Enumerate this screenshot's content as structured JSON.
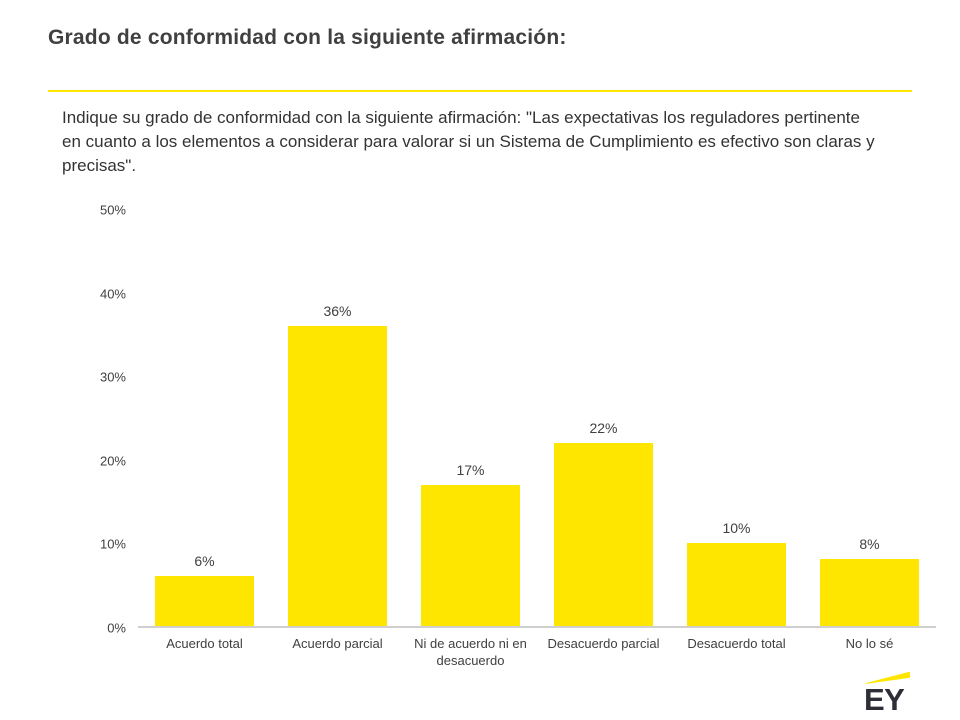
{
  "page": {
    "title": "Grado de conformidad con la siguiente afirmación:",
    "question": "Indique su grado de conformidad con la siguiente afirmación: \"Las expectativas los reguladores pertinente en cuanto a los elementos a considerar para valorar si un Sistema de Cumplimiento es efectivo son claras y precisas\"."
  },
  "chart_data": {
    "type": "bar",
    "title": "Grado de conformidad con la siguiente afirmación",
    "categories": [
      "Acuerdo total",
      "Acuerdo parcial",
      "Ni de acuerdo ni en desacuerdo",
      "Desacuerdo parcial",
      "Desacuerdo total",
      "No lo sé"
    ],
    "values": [
      6,
      36,
      17,
      22,
      10,
      8
    ],
    "value_labels": [
      "6%",
      "36%",
      "17%",
      "22%",
      "10%",
      "8%"
    ],
    "y_ticks": [
      "50%",
      "40%",
      "30%",
      "20%",
      "10%",
      "0%"
    ],
    "xlabel": "",
    "ylabel": "",
    "ylim": [
      0,
      50
    ],
    "grid": false,
    "legend": false,
    "bar_color": "#FFE600",
    "label_color": "#404040",
    "axis_line_color": "#cfcfcf"
  },
  "branding": {
    "logo_text": "EY",
    "accent_color": "#FFE600"
  }
}
